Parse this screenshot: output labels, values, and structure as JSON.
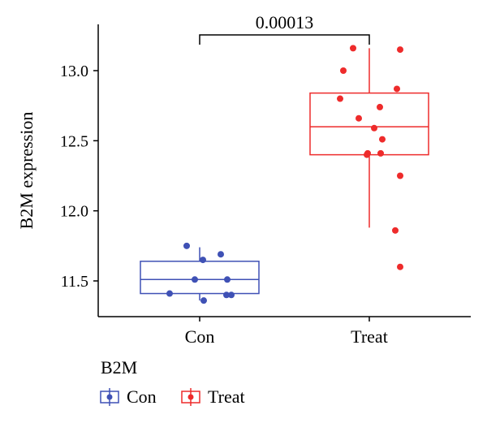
{
  "chart_data": {
    "type": "box",
    "ylabel": "B2M expression",
    "categories": [
      "Con",
      "Treat"
    ],
    "yticks": [
      11.5,
      12.0,
      12.5,
      13.0
    ],
    "yticklabels": [
      "11.5",
      "12.0",
      "12.5",
      "13.0"
    ],
    "ylim": [
      11.25,
      13.32
    ],
    "significance": {
      "label": "0.00013",
      "between": [
        "Con",
        "Treat"
      ],
      "y": 13.25
    },
    "legend": {
      "title": "B2M",
      "placement": "bottom-left",
      "entries": [
        "Con",
        "Treat"
      ]
    },
    "colors": {
      "Con": "#3f51b5",
      "Treat": "#ee2b2b"
    },
    "boxes": [
      {
        "group": "Con",
        "whisker_low": 11.36,
        "q1": 11.41,
        "median": 11.51,
        "q3": 11.64,
        "whisker_high": 11.74
      },
      {
        "group": "Treat",
        "whisker_low": 11.88,
        "q1": 12.4,
        "median": 12.6,
        "q3": 12.84,
        "whisker_high": 13.16
      }
    ],
    "points": [
      {
        "group": "Con",
        "values": [
          11.75,
          11.69,
          11.65,
          11.51,
          11.51,
          11.41,
          11.4,
          11.4,
          11.36
        ]
      },
      {
        "group": "Treat",
        "values": [
          13.16,
          13.15,
          13.0,
          12.87,
          12.8,
          12.74,
          12.66,
          12.59,
          12.51,
          12.41,
          12.41,
          12.4,
          12.25,
          11.86,
          11.6
        ]
      }
    ]
  }
}
